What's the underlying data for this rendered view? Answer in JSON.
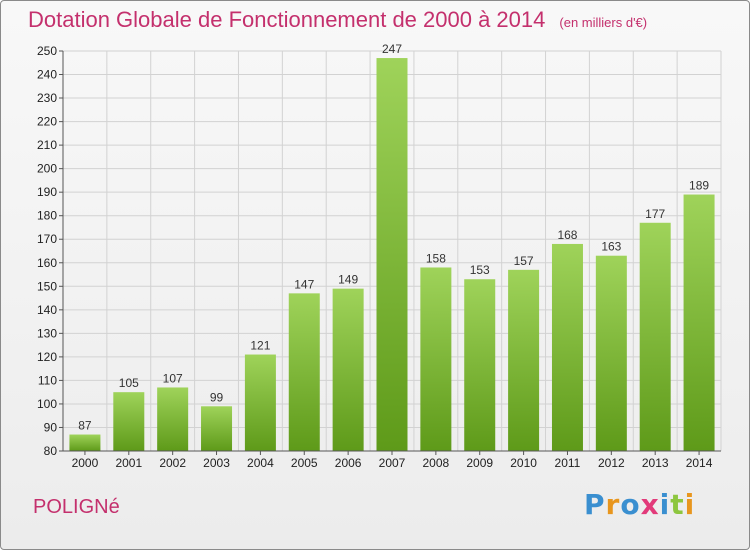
{
  "title": "Dotation Globale de Fonctionnement de 2000 à 2014",
  "unit": "(en milliers d'€)",
  "commune": "POLIGNé",
  "logo": {
    "text": "Proxiti",
    "letters": [
      {
        "ch": "P",
        "color": "#3a8fd0"
      },
      {
        "ch": "r",
        "color": "#e8961e"
      },
      {
        "ch": "o",
        "color": "#3a8fd0"
      },
      {
        "ch": "x",
        "color": "#e23a7a"
      },
      {
        "ch": "i",
        "color": "#3a8fd0"
      },
      {
        "ch": "t",
        "color": "#8dc63f"
      },
      {
        "ch": "i",
        "color": "#e8961e"
      }
    ]
  },
  "chart_data": {
    "type": "bar",
    "categories": [
      "2000",
      "2001",
      "2002",
      "2003",
      "2004",
      "2005",
      "2006",
      "2007",
      "2008",
      "2009",
      "2010",
      "2011",
      "2012",
      "2013",
      "2014"
    ],
    "values": [
      87,
      105,
      107,
      99,
      121,
      147,
      149,
      247,
      158,
      153,
      157,
      168,
      163,
      177,
      189
    ],
    "ylim": [
      80,
      250
    ],
    "yticks": [
      80,
      90,
      100,
      110,
      120,
      130,
      140,
      150,
      160,
      170,
      180,
      190,
      200,
      210,
      220,
      230,
      240,
      250
    ],
    "grid": true,
    "bar_color_light": "#9fd35a",
    "bar_color_dark": "#5e9a19",
    "title": "Dotation Globale de Fonctionnement de 2000 à 2014",
    "xlabel": "",
    "ylabel": ""
  }
}
